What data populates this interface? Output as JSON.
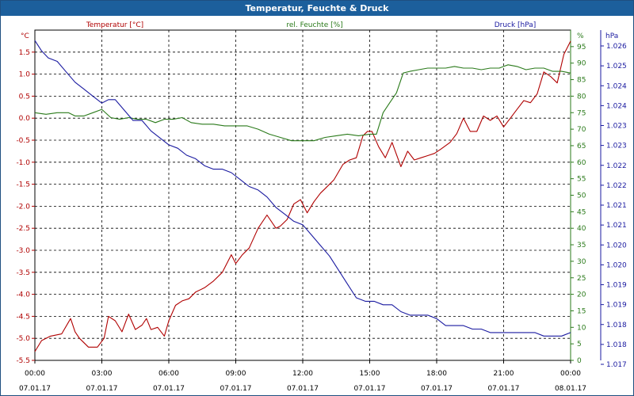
{
  "window": {
    "title": "Temperatur, Feuchte & Druck"
  },
  "colors": {
    "temp": "#b00000",
    "hum": "#2a7a1a",
    "pres": "#1a1aa0",
    "grid": "#000000",
    "title_bg": "#1c5f9c"
  },
  "chart_data": {
    "type": "line",
    "title": "Temperatur, Feuchte & Druck",
    "x_ticks": [
      {
        "time": "00:00",
        "date": "07.01.17"
      },
      {
        "time": "03:00",
        "date": "07.01.17"
      },
      {
        "time": "06:00",
        "date": "07.01.17"
      },
      {
        "time": "09:00",
        "date": "07.01.17"
      },
      {
        "time": "12:00",
        "date": "07.01.17"
      },
      {
        "time": "15:00",
        "date": "07.01.17"
      },
      {
        "time": "18:00",
        "date": "07.01.17"
      },
      {
        "time": "21:00",
        "date": "07.01.17"
      },
      {
        "time": "00:00",
        "date": "08.01.17"
      }
    ],
    "x_range": [
      "07.01.17 00:00",
      "08.01.17 00:00"
    ],
    "grid": true,
    "axes": {
      "temp": {
        "legend": "Temperatur [°C]",
        "unit": "°C",
        "range": [
          -5.5,
          2.0
        ],
        "ticks": [
          "1.5",
          "1.0",
          "0.5",
          "0.0",
          "-0.5",
          "-1.0",
          "-1.5",
          "-2.0",
          "-2.5",
          "-3.0",
          "-3.5",
          "-4.0",
          "-4.5",
          "-5.0",
          "-5.5"
        ]
      },
      "hum": {
        "legend": "rel. Feuchte [%]",
        "unit": "%",
        "range": [
          0,
          100
        ],
        "ticks": [
          "95",
          "90",
          "85",
          "80",
          "75",
          "70",
          "65",
          "60",
          "55",
          "50",
          "45",
          "40",
          "35",
          "30",
          "25",
          "20",
          "15",
          "10",
          "5",
          "0"
        ]
      },
      "pres": {
        "legend": "Druck [hPa]",
        "unit": "hPa",
        "range": [
          1.017,
          1.0265
        ],
        "ticks": [
          "1.026",
          "1.025",
          "1.024",
          "1.024",
          "1.023",
          "1.023",
          "1.022",
          "1.022",
          "1.021",
          "1.021",
          "1.020",
          "1.020",
          "1.019",
          "1.019",
          "1.018",
          "1.018",
          "1.017"
        ]
      }
    },
    "series": [
      {
        "name": "Temperatur [°C]",
        "axis": "temp",
        "hours": [
          0,
          0.3,
          0.7,
          1.2,
          1.6,
          1.8,
          2.0,
          2.4,
          2.8,
          3.1,
          3.3,
          3.6,
          3.9,
          4.2,
          4.5,
          4.8,
          5.0,
          5.2,
          5.5,
          5.8,
          6.0,
          6.3,
          6.6,
          6.9,
          7.2,
          7.6,
          8.0,
          8.4,
          8.8,
          9.0,
          9.3,
          9.6,
          10.0,
          10.4,
          10.8,
          11.0,
          11.3,
          11.6,
          11.9,
          12.2,
          12.5,
          12.8,
          13.0,
          13.4,
          13.8,
          14.1,
          14.4,
          14.7,
          14.9,
          15.1,
          15.4,
          15.7,
          16.0,
          16.4,
          16.7,
          17.0,
          17.3,
          17.6,
          17.9,
          18.2,
          18.6,
          18.9,
          19.2,
          19.5,
          19.8,
          20.1,
          20.4,
          20.7,
          21.0,
          21.3,
          21.6,
          21.9,
          22.2,
          22.5,
          22.8,
          23.1,
          23.4,
          23.7,
          24.0
        ],
        "values": [
          -5.3,
          -5.05,
          -4.95,
          -4.9,
          -4.55,
          -4.85,
          -5.0,
          -5.2,
          -5.2,
          -5.0,
          -4.5,
          -4.6,
          -4.85,
          -4.45,
          -4.8,
          -4.7,
          -4.55,
          -4.8,
          -4.75,
          -4.95,
          -4.6,
          -4.25,
          -4.15,
          -4.1,
          -3.95,
          -3.85,
          -3.7,
          -3.5,
          -3.1,
          -3.3,
          -3.1,
          -2.95,
          -2.5,
          -2.2,
          -2.5,
          -2.45,
          -2.3,
          -1.95,
          -1.85,
          -2.15,
          -1.9,
          -1.7,
          -1.6,
          -1.4,
          -1.05,
          -0.95,
          -0.9,
          -0.4,
          -0.3,
          -0.3,
          -0.65,
          -0.9,
          -0.55,
          -1.1,
          -0.75,
          -0.95,
          -0.9,
          -0.85,
          -0.8,
          -0.7,
          -0.55,
          -0.35,
          0.0,
          -0.3,
          -0.3,
          0.05,
          -0.05,
          0.05,
          -0.2,
          0.0,
          0.2,
          0.4,
          0.35,
          0.55,
          1.05,
          0.95,
          0.8,
          1.45,
          1.75
        ]
      },
      {
        "name": "rel. Feuchte [%]",
        "axis": "hum",
        "hours": [
          0,
          0.5,
          1.0,
          1.5,
          1.8,
          2.2,
          2.6,
          3.0,
          3.4,
          3.8,
          4.2,
          4.6,
          5.0,
          5.4,
          5.8,
          6.2,
          6.6,
          7.0,
          7.5,
          8.0,
          8.5,
          9.0,
          9.5,
          10.0,
          10.5,
          11.0,
          11.5,
          12.0,
          12.5,
          13.0,
          13.5,
          14.0,
          14.5,
          15.0,
          15.3,
          15.6,
          15.9,
          16.2,
          16.5,
          16.8,
          17.2,
          17.6,
          18.0,
          18.4,
          18.8,
          19.2,
          19.6,
          20.0,
          20.4,
          20.8,
          21.2,
          21.6,
          22.0,
          22.4,
          22.8,
          23.2,
          23.6,
          24.0
        ],
        "values": [
          75,
          74.5,
          75,
          75,
          74,
          74,
          75,
          76,
          73.5,
          73,
          73.5,
          73,
          73,
          72,
          73,
          73,
          73.5,
          72,
          71.5,
          71.5,
          71,
          71,
          71,
          70,
          68.5,
          67.5,
          66.5,
          66.5,
          66.5,
          67.5,
          68,
          68.5,
          68,
          68.5,
          68.5,
          75,
          78,
          81,
          87,
          87.5,
          88,
          88.5,
          88.5,
          88.5,
          89,
          88.5,
          88.5,
          88,
          88.5,
          88.5,
          89.5,
          89,
          88,
          88.5,
          88.5,
          87.5,
          87.5,
          87
        ]
      },
      {
        "name": "Druck [hPa]",
        "axis": "pres",
        "hours": [
          0,
          0.3,
          0.6,
          1.0,
          1.4,
          1.8,
          2.2,
          2.6,
          3.0,
          3.3,
          3.6,
          4.0,
          4.4,
          4.8,
          5.2,
          5.6,
          6.0,
          6.4,
          6.8,
          7.2,
          7.6,
          8.0,
          8.4,
          8.8,
          9.2,
          9.6,
          10.0,
          10.4,
          10.8,
          11.2,
          11.6,
          12.0,
          12.4,
          12.8,
          13.2,
          13.6,
          14.0,
          14.4,
          14.8,
          15.2,
          15.6,
          16.0,
          16.4,
          16.8,
          17.2,
          17.6,
          18.0,
          18.4,
          18.8,
          19.2,
          19.6,
          20.0,
          20.4,
          20.8,
          21.2,
          21.6,
          22.0,
          22.4,
          22.8,
          23.2,
          23.6,
          24.0
        ],
        "values": [
          1.0262,
          1.0259,
          1.0257,
          1.0256,
          1.0253,
          1.025,
          1.0248,
          1.0246,
          1.0244,
          1.0245,
          1.0245,
          1.0242,
          1.0239,
          1.0239,
          1.0236,
          1.0234,
          1.0232,
          1.0231,
          1.0229,
          1.0228,
          1.0226,
          1.0225,
          1.0225,
          1.0224,
          1.0222,
          1.022,
          1.0219,
          1.0217,
          1.0214,
          1.0212,
          1.021,
          1.0209,
          1.0206,
          1.0203,
          1.02,
          1.0196,
          1.0192,
          1.0188,
          1.0187,
          1.0187,
          1.0186,
          1.0186,
          1.0184,
          1.0183,
          1.0183,
          1.0183,
          1.0182,
          1.018,
          1.018,
          1.018,
          1.0179,
          1.0179,
          1.0178,
          1.0178,
          1.0178,
          1.0178,
          1.0178,
          1.0178,
          1.0177,
          1.0177,
          1.0177,
          1.0178
        ]
      }
    ]
  }
}
